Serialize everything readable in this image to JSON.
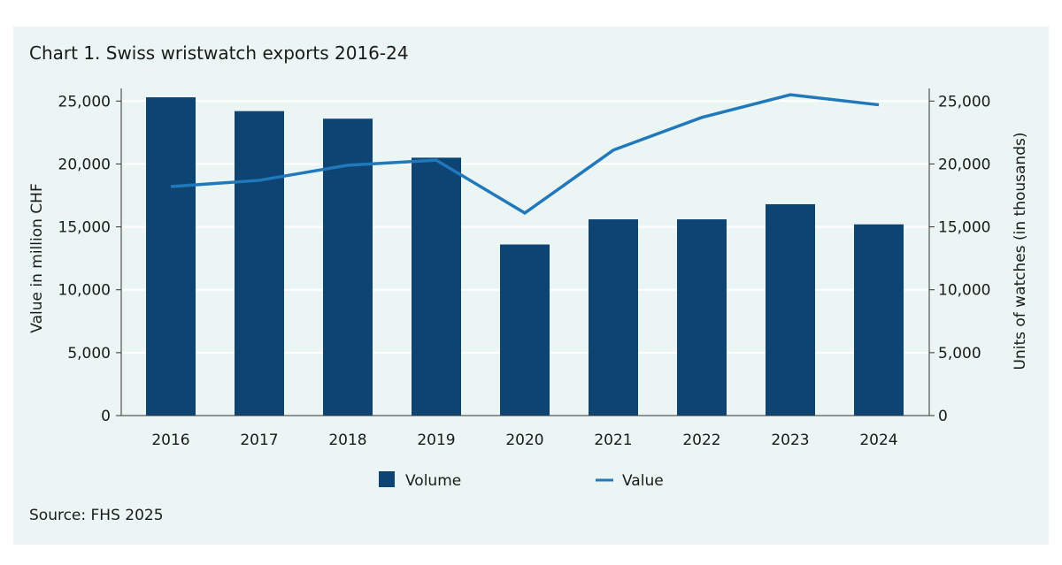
{
  "title": "Chart 1. Swiss wristwatch exports 2016-24",
  "source": "Source: FHS 2025",
  "colors": {
    "volume": "#0d4474",
    "value": "#2178bb",
    "background": "#ebf5f3",
    "grid": "#ffffff"
  },
  "chart_data": {
    "type": "bar",
    "title": "Chart 1. Swiss wristwatch exports 2016-24",
    "categories": [
      "2016",
      "2017",
      "2018",
      "2019",
      "2020",
      "2021",
      "2022",
      "2023",
      "2024"
    ],
    "series": [
      {
        "name": "Volume",
        "type": "bar",
        "axis": "right",
        "values": [
          25300,
          24200,
          23600,
          20500,
          13600,
          15600,
          15600,
          16800,
          15200
        ]
      },
      {
        "name": "Value",
        "type": "line",
        "axis": "left",
        "values": [
          18200,
          18700,
          19900,
          20300,
          16100,
          21100,
          23700,
          25500,
          24700
        ]
      }
    ],
    "ylabel": "Value in million CHF",
    "y2label": "Units of watches (in thousands)",
    "ylim": [
      0,
      25000
    ],
    "y2lim": [
      0,
      25000
    ],
    "yticks": [
      "0",
      "5,000",
      "10,000",
      "15,000",
      "20,000",
      "25,000"
    ],
    "grid": true,
    "legend": "bottom"
  }
}
